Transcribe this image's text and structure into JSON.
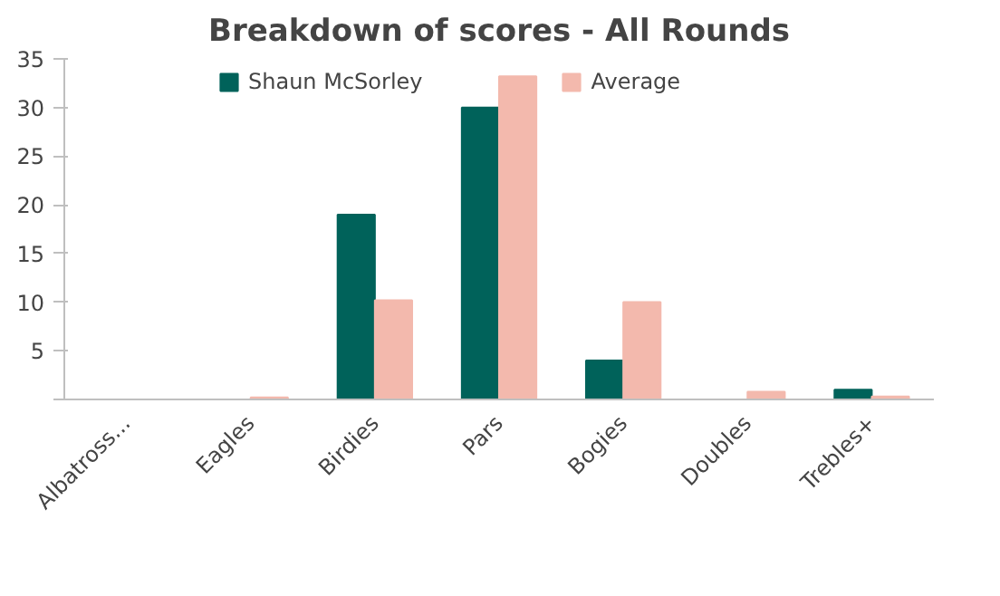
{
  "chart_data": {
    "type": "bar",
    "title": "Breakdown of scores - All Rounds",
    "categories": [
      "Albatross...",
      "Eagles",
      "Birdies",
      "Pars",
      "Bogies",
      "Doubles",
      "Trebles+"
    ],
    "series": [
      {
        "name": "Shaun McSorley",
        "color": "#00625a",
        "values": [
          0,
          0,
          19,
          30,
          4,
          0,
          1
        ]
      },
      {
        "name": "Average",
        "color": "#f3b9ad",
        "values": [
          0,
          0.2,
          10.2,
          33.2,
          10,
          0.8,
          0.3
        ]
      }
    ],
    "ylim": [
      0,
      35
    ],
    "yticks": [
      {
        "value": 0,
        "label": null
      },
      5,
      10,
      15,
      20,
      25,
      30,
      35
    ],
    "grid": false,
    "legend": "top"
  }
}
